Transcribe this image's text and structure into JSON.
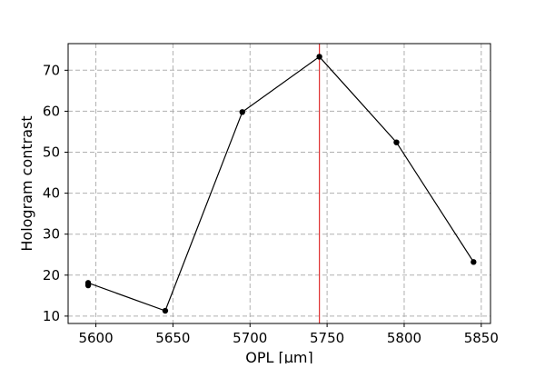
{
  "chart_data": {
    "type": "line",
    "title": "",
    "xlabel": "OPL [μm]",
    "ylabel": "Hologram contrast",
    "xlim": [
      5582,
      5856
    ],
    "ylim": [
      8.2,
      76.5
    ],
    "xticks": [
      5600,
      5650,
      5700,
      5750,
      5800,
      5850
    ],
    "yticks": [
      10,
      20,
      30,
      40,
      50,
      60,
      70
    ],
    "grid": true,
    "grid_style": "dashed",
    "series": [
      {
        "color": "#000000",
        "marker": "circle",
        "points": [
          {
            "x": 5595,
            "y": 17.5
          },
          {
            "x": 5595,
            "y": 18.1
          },
          {
            "x": 5645,
            "y": 11.3
          },
          {
            "x": 5695,
            "y": 59.8
          },
          {
            "x": 5745,
            "y": 73.3
          },
          {
            "x": 5795,
            "y": 52.4
          },
          {
            "x": 5845,
            "y": 23.2
          }
        ]
      }
    ],
    "reference_line": {
      "x": 5745,
      "color": "#e03030"
    }
  }
}
